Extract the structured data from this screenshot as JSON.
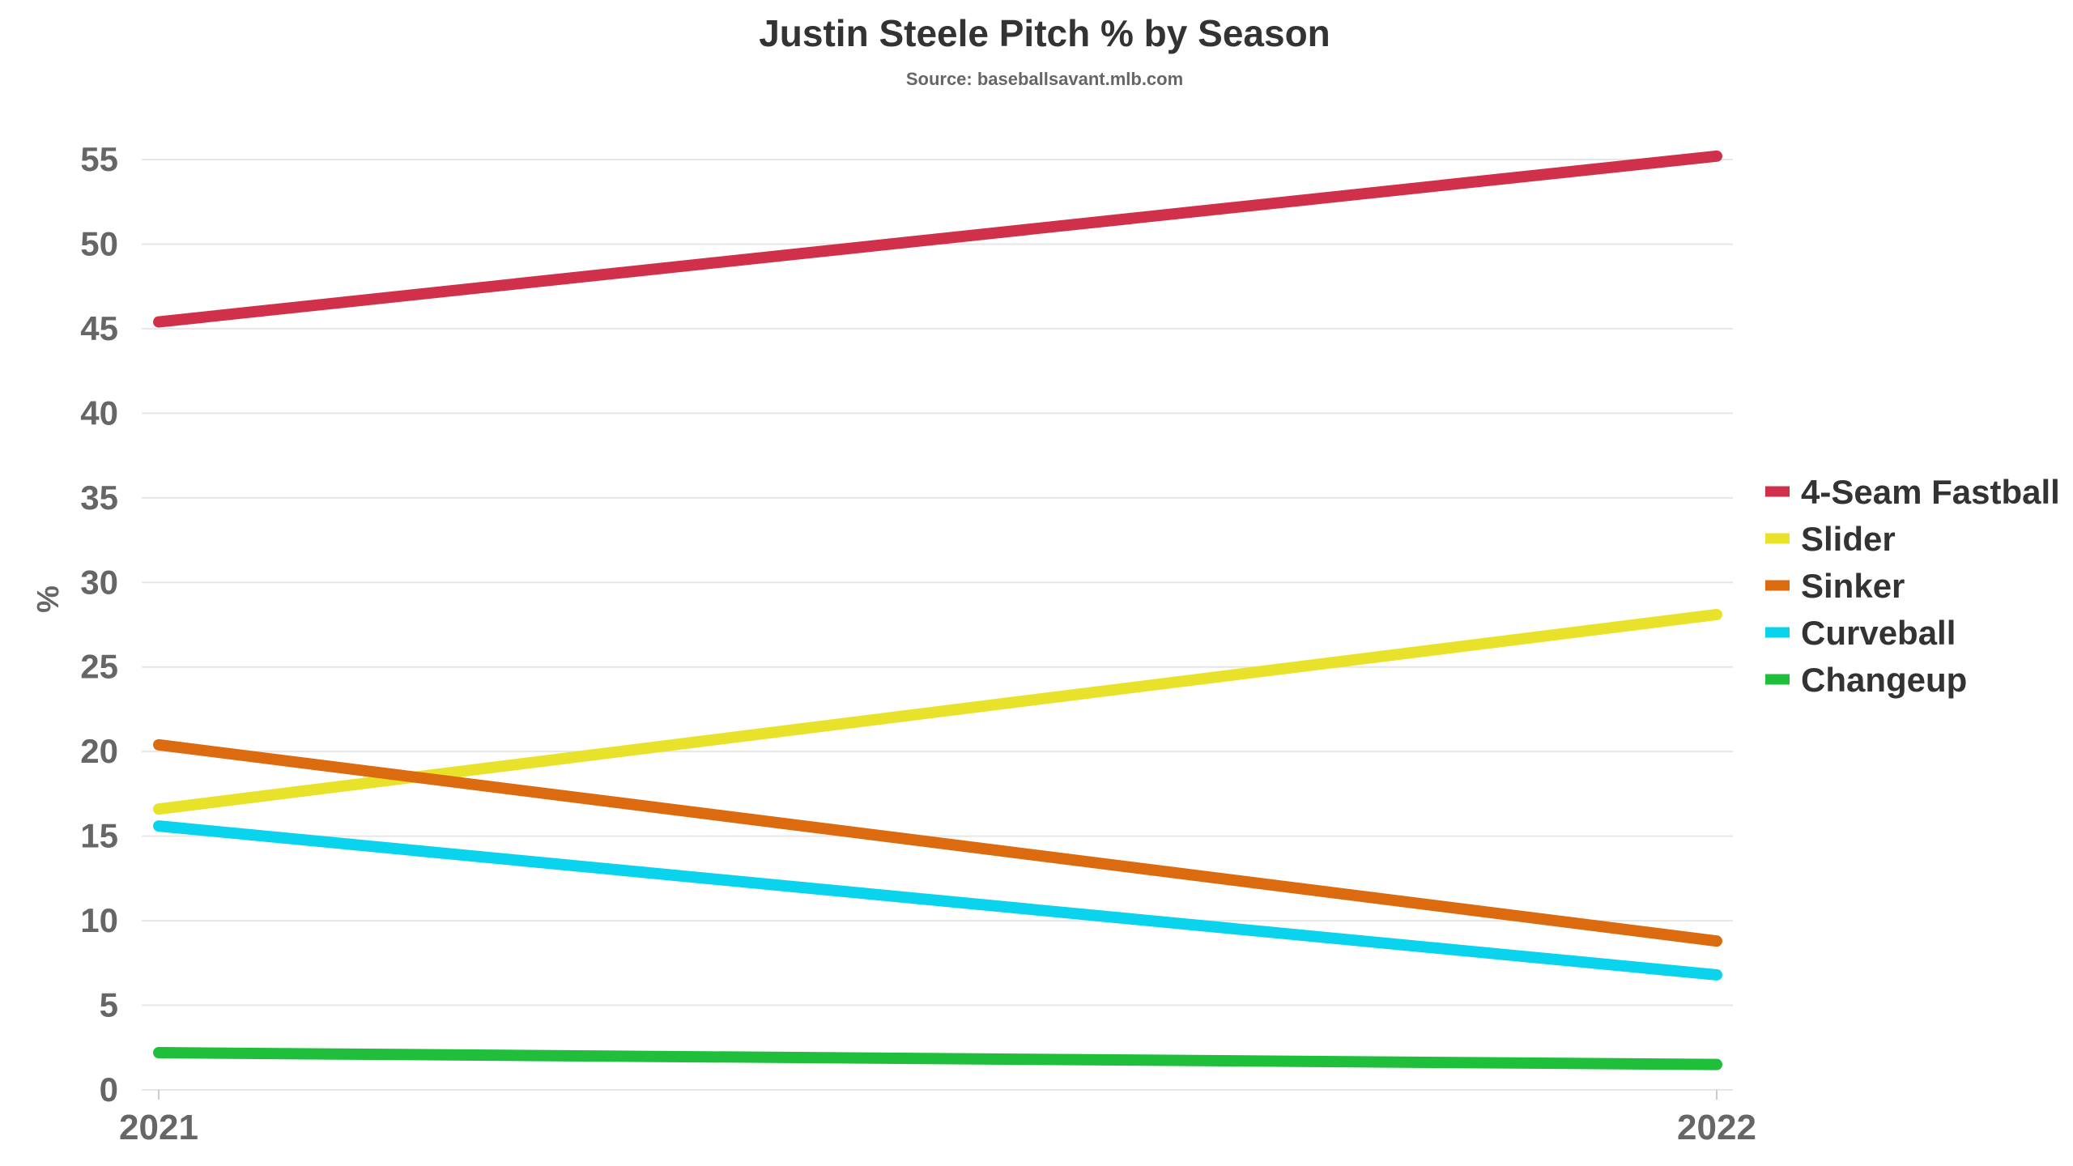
{
  "chart_data": {
    "type": "line",
    "title": "Justin Steele Pitch % by Season",
    "subtitle": "Source: baseballsavant.mlb.com",
    "xlabel": "",
    "ylabel": "%",
    "categories": [
      "2021",
      "2022"
    ],
    "ylim": [
      0,
      55
    ],
    "yticks": [
      0,
      5,
      10,
      15,
      20,
      25,
      30,
      35,
      40,
      45,
      50,
      55
    ],
    "grid": true,
    "legend_position": "right",
    "series": [
      {
        "name": "4-Seam Fastball",
        "color": "#d0304a",
        "values": [
          45.4,
          55.2
        ]
      },
      {
        "name": "Slider",
        "color": "#e8e22a",
        "values": [
          16.6,
          28.1
        ]
      },
      {
        "name": "Sinker",
        "color": "#dc6a0e",
        "values": [
          20.4,
          8.8
        ]
      },
      {
        "name": "Curveball",
        "color": "#0ad3ee",
        "values": [
          15.6,
          6.8
        ]
      },
      {
        "name": "Changeup",
        "color": "#1fbf3c",
        "values": [
          2.2,
          1.5
        ]
      }
    ]
  }
}
